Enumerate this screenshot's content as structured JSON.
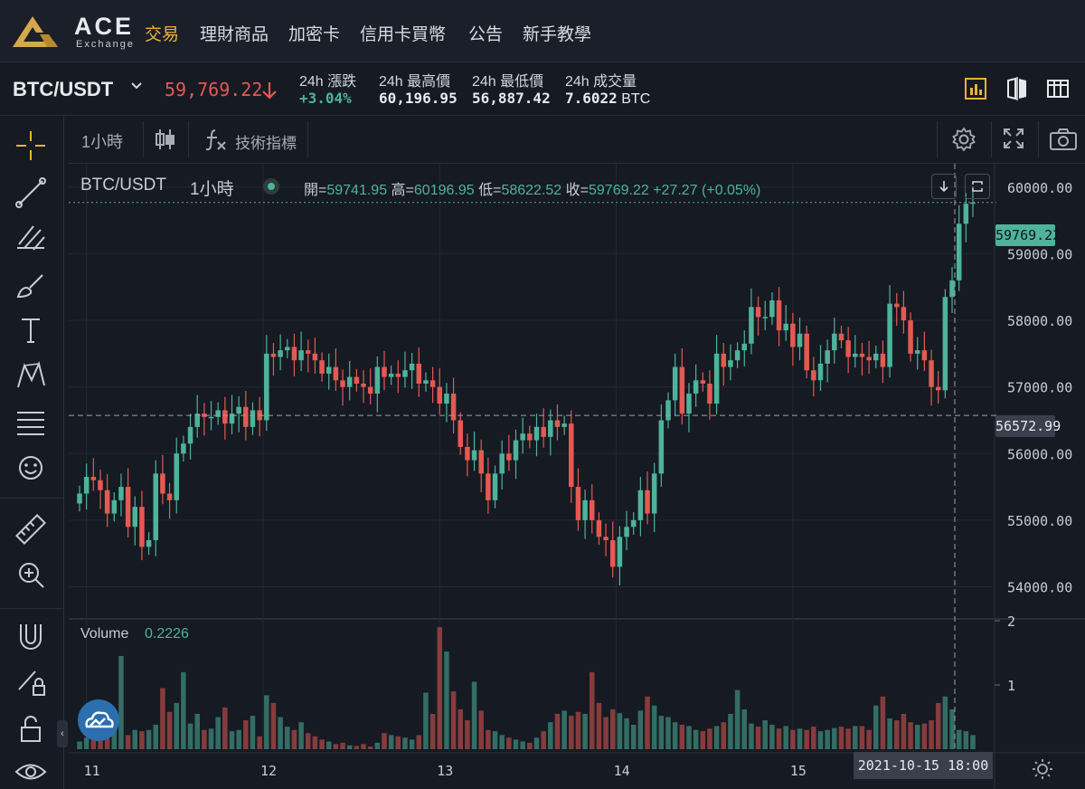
{
  "nav": {
    "brand": "ACE",
    "brand_sub": "Exchange",
    "items": [
      {
        "label": "交易",
        "active": true
      },
      {
        "label": "理財商品",
        "active": false
      },
      {
        "label": "加密卡",
        "active": false
      },
      {
        "label": "信用卡買幣",
        "active": false
      },
      {
        "label": "公告",
        "active": false
      },
      {
        "label": "新手教學",
        "active": false
      }
    ]
  },
  "ticker": {
    "pair": "BTC/USDT",
    "last_price": "59,769.22",
    "change_label": "24h  漲跌",
    "change_value": "+3.04%",
    "high_label": "24h  最高價",
    "high_value": "60,196.95",
    "low_label": "24h  最低價",
    "low_value": "56,887.42",
    "volume_label": "24h  成交量",
    "volume_value": "7.6022",
    "volume_unit": "BTC"
  },
  "chart_toolbar": {
    "interval": "1小時",
    "indicators": "技術指標"
  },
  "legend": {
    "pair": "BTC/USDT",
    "interval": "1小時",
    "open_key": "開=",
    "open": "59741.95",
    "high_key": "高=",
    "high": "60196.95",
    "low_key": "低=",
    "low": "58622.52",
    "close_key": "收=",
    "close": "59769.22",
    "change": "+27.27 (+0.05%)",
    "volume_label": "Volume",
    "volume_value": "0.2226"
  },
  "badges": {
    "last": "59769.22",
    "crosshair": "56572.99",
    "time": "2021-10-15   18:00"
  },
  "colors": {
    "up": "#4db39a",
    "down": "#e35a52",
    "accent": "#e8b33a",
    "background": "#161a23"
  },
  "chart_data": {
    "type": "candlestick",
    "title": "BTC/USDT 1小時",
    "xlabel": "",
    "ylabel": "",
    "x_ticks": [
      "11",
      "12",
      "13",
      "14",
      "15"
    ],
    "y_ticks": [
      "60000.00",
      "59000.00",
      "58000.00",
      "57000.00",
      "56000.00",
      "55000.00",
      "54000.00"
    ],
    "ylim": [
      53600,
      60350
    ],
    "volume_ticks": [
      "2",
      "1"
    ],
    "volume_ylim": [
      0,
      2
    ],
    "closes": [
      55400,
      55650,
      55600,
      55450,
      55100,
      55300,
      55500,
      54900,
      55200,
      54600,
      54700,
      55700,
      55400,
      55300,
      56000,
      56150,
      56400,
      56600,
      56550,
      56550,
      56650,
      56450,
      56600,
      56700,
      56400,
      56650,
      56500,
      57500,
      57450,
      57550,
      57600,
      57400,
      57550,
      57500,
      57400,
      57200,
      57300,
      57100,
      57000,
      57150,
      57050,
      57000,
      56900,
      57300,
      57150,
      57200,
      57150,
      57250,
      57350,
      57050,
      57100,
      57000,
      56750,
      56900,
      56500,
      56100,
      55900,
      56050,
      55700,
      55300,
      55700,
      56000,
      55900,
      56200,
      56300,
      56200,
      56400,
      56250,
      56500,
      56400,
      56450,
      55500,
      55000,
      55300,
      55000,
      54750,
      54700,
      54300,
      54750,
      54900,
      55000,
      55450,
      55100,
      55700,
      56500,
      56800,
      57300,
      56600,
      56900,
      57100,
      57050,
      56750,
      57500,
      57300,
      57400,
      57550,
      57650,
      58200,
      58050,
      58050,
      58300,
      57850,
      57950,
      57600,
      57800,
      57250,
      57100,
      57350,
      57550,
      57800,
      57700,
      57450,
      57500,
      57450,
      57400,
      57500,
      57300,
      58250,
      58200,
      58000,
      57500,
      57550,
      57400,
      57000,
      56950,
      58350,
      58600,
      59450,
      59750,
      59769
    ],
    "volumes": [
      0.12,
      0.18,
      0.2,
      0.16,
      0.25,
      0.35,
      1.45,
      0.22,
      0.3,
      0.28,
      0.3,
      0.38,
      0.95,
      0.58,
      0.72,
      1.2,
      0.4,
      0.55,
      0.3,
      0.32,
      0.5,
      0.65,
      0.28,
      0.3,
      0.45,
      0.52,
      0.2,
      0.84,
      0.72,
      0.5,
      0.35,
      0.3,
      0.42,
      0.25,
      0.2,
      0.15,
      0.12,
      0.08,
      0.1,
      0.06,
      0.05,
      0.08,
      0.04,
      0.1,
      0.25,
      0.22,
      0.2,
      0.18,
      0.15,
      0.22,
      0.88,
      0.55,
      1.9,
      1.52,
      0.9,
      0.62,
      0.45,
      1.05,
      0.6,
      0.3,
      0.28,
      0.22,
      0.18,
      0.15,
      0.12,
      0.1,
      0.18,
      0.28,
      0.42,
      0.55,
      0.6,
      0.52,
      0.58,
      0.55,
      1.2,
      0.72,
      0.5,
      0.62,
      0.56,
      0.48,
      0.38,
      0.6,
      0.82,
      0.68,
      0.52,
      0.5,
      0.42,
      0.38,
      0.36,
      0.3,
      0.28,
      0.32,
      0.36,
      0.42,
      0.55,
      0.92,
      0.62,
      0.4,
      0.35,
      0.45,
      0.38,
      0.32,
      0.36,
      0.3,
      0.32,
      0.3,
      0.35,
      0.28,
      0.3,
      0.33,
      0.35,
      0.32,
      0.36,
      0.36,
      0.3,
      0.68,
      0.82,
      0.48,
      0.45,
      0.55,
      0.42,
      0.38,
      0.4,
      0.45,
      0.72,
      0.82,
      0.62,
      0.3,
      0.28,
      0.22
    ]
  }
}
